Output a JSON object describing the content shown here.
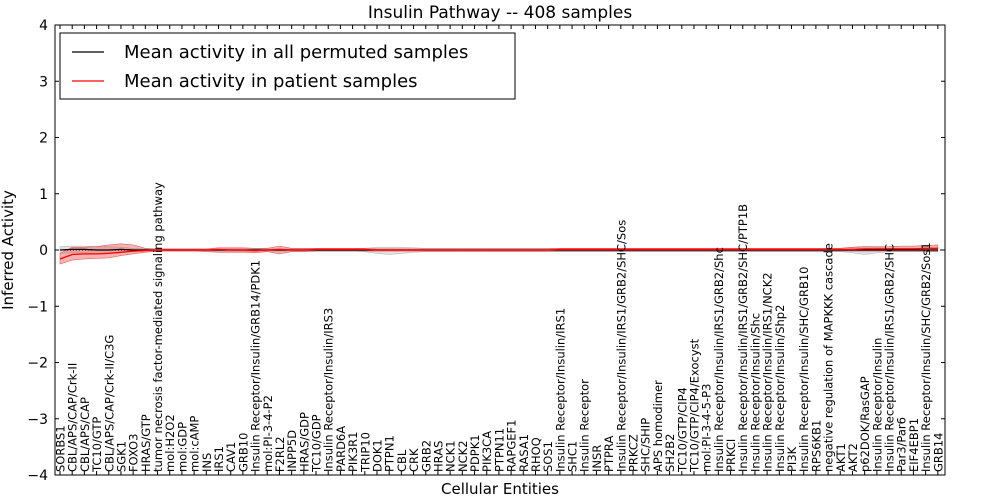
{
  "chart_data": {
    "type": "line",
    "title": "Insulin Pathway -- 408 samples",
    "xlabel": "Cellular Entities",
    "ylabel": "Inferred Activity",
    "ylim": [
      -4,
      4
    ],
    "yticks": [
      "−4",
      "−3",
      "−2",
      "−1",
      "0",
      "1",
      "2",
      "3",
      "4"
    ],
    "grid": false,
    "legend_position": "top-left",
    "categories": [
      "SORBS1",
      "CBL/APS/CAP/Crk-II",
      "CBL/APS/CAP",
      "TC10/GTP",
      "CBL/APS/CAP/Crk-II/C3G",
      "SGK1",
      "FOXO3",
      "HRAS/GTP",
      "tumor necrosis factor-mediated signaling pathway",
      "mol:H2O2",
      "mol:GDP",
      "mol:cAMP",
      "INS",
      "IRS1",
      "CAV1",
      "GRB10",
      "Insulin Receptor/Insulin/GRB14/PDK1",
      "mol:PI-3-4-P2",
      "F2RL2",
      "INPP5D",
      "HRAS/GDP",
      "TC10/GDP",
      "Insulin Receptor/Insulin/IRS3",
      "PARD6A",
      "PIK3R1",
      "TRIP10",
      "DOK1",
      "PTPN1",
      "CBL",
      "CRK",
      "GRB2",
      "HRAS",
      "NCK1",
      "NCK2",
      "PDPK1",
      "PIK3CA",
      "PTPN11",
      "RAPGEF1",
      "RASA1",
      "RHOQ",
      "SOS1",
      "Insulin Receptor/Insulin/IRS1",
      "SHC1",
      "Insulin Receptor",
      "INSR",
      "PTPRA",
      "Insulin Receptor/Insulin/IRS1/GRB2/SHC/Sos",
      "PRKCZ",
      "SHC/SHIP",
      "APS homodimer",
      "SH2B2",
      "TC10/GTP/CIP4",
      "TC10/GTP/CIP4/Exocyst",
      "mol:PI-3-4-5-P3",
      "Insulin Receptor/Insulin/IRS1/GRB2/Shc",
      "PRKCI",
      "Insulin Receptor/Insulin/IRS1/GRB2/SHC/PTP1B",
      "Insulin Receptor/Insulin/Shc",
      "Insulin Receptor/Insulin/IRS1/NCK2",
      "Insulin Receptor/Insulin/Shp2",
      "PI3K",
      "Insulin Receptor/Insulin/SHC/GRB10",
      "RPS6KB1",
      "negative regulation of MAPKKK cascade",
      "AKT1",
      "AKT2",
      "p62DOK/RasGAP",
      "Insulin Receptor/Insulin",
      "Insulin Receptor/Insulin/IRS1/GRB2/SHC",
      "Par3/Par6",
      "EIF4EBP1",
      "Insulin Receptor/Insulin/SHC/GRB2/Sos1",
      "GRB14"
    ],
    "series": [
      {
        "name": "Mean activity in all permuted samples",
        "color": "#000000",
        "values": [
          0.0,
          0.01,
          0.01,
          0.0,
          0.0,
          0.01,
          0.0,
          0.0,
          0.0,
          0.0,
          0.0,
          0.0,
          0.0,
          0.0,
          0.0,
          0.0,
          0.0,
          0.0,
          0.0,
          0.0,
          0.0,
          0.0,
          0.0,
          0.0,
          0.0,
          0.0,
          0.0,
          0.0,
          0.0,
          0.0,
          0.0,
          0.0,
          0.0,
          0.0,
          0.0,
          0.0,
          0.0,
          0.0,
          0.0,
          0.0,
          0.0,
          0.0,
          0.0,
          0.0,
          0.0,
          0.0,
          0.0,
          0.0,
          0.0,
          0.0,
          0.0,
          0.0,
          0.0,
          0.0,
          0.0,
          0.0,
          0.0,
          0.0,
          0.0,
          0.0,
          0.0,
          0.0,
          0.0,
          0.0,
          0.0,
          0.0,
          0.0,
          0.0,
          0.0,
          0.0,
          0.0,
          0.0,
          0.0
        ],
        "band_low": [
          -0.06,
          -0.05,
          -0.05,
          -0.06,
          -0.05,
          -0.04,
          -0.03,
          -0.02,
          -0.02,
          -0.02,
          -0.02,
          -0.02,
          -0.02,
          -0.02,
          -0.03,
          -0.03,
          -0.03,
          -0.02,
          -0.02,
          -0.02,
          -0.02,
          -0.02,
          -0.02,
          -0.02,
          -0.02,
          -0.03,
          -0.06,
          -0.08,
          -0.06,
          -0.04,
          -0.03,
          -0.03,
          -0.03,
          -0.03,
          -0.03,
          -0.03,
          -0.03,
          -0.03,
          -0.03,
          -0.03,
          -0.03,
          -0.03,
          -0.03,
          -0.03,
          -0.03,
          -0.03,
          -0.03,
          -0.03,
          -0.03,
          -0.03,
          -0.03,
          -0.03,
          -0.03,
          -0.03,
          -0.03,
          -0.03,
          -0.03,
          -0.03,
          -0.03,
          -0.03,
          -0.03,
          -0.03,
          -0.03,
          -0.03,
          -0.03,
          -0.05,
          -0.08,
          -0.05,
          -0.03,
          -0.03,
          -0.03,
          -0.03,
          -0.03
        ],
        "band_high": [
          0.06,
          0.07,
          0.07,
          0.06,
          0.06,
          0.05,
          0.03,
          0.02,
          0.02,
          0.02,
          0.02,
          0.02,
          0.02,
          0.02,
          0.03,
          0.03,
          0.03,
          0.02,
          0.02,
          0.02,
          0.02,
          0.02,
          0.02,
          0.02,
          0.02,
          0.03,
          0.05,
          0.05,
          0.05,
          0.04,
          0.03,
          0.03,
          0.03,
          0.03,
          0.03,
          0.03,
          0.03,
          0.03,
          0.03,
          0.03,
          0.03,
          0.03,
          0.03,
          0.03,
          0.03,
          0.03,
          0.03,
          0.03,
          0.03,
          0.03,
          0.03,
          0.03,
          0.03,
          0.03,
          0.03,
          0.03,
          0.03,
          0.03,
          0.03,
          0.03,
          0.03,
          0.03,
          0.03,
          0.03,
          0.03,
          0.05,
          0.06,
          0.05,
          0.03,
          0.03,
          0.03,
          0.03,
          0.03
        ]
      },
      {
        "name": "Mean activity in patient samples",
        "color": "#ff0000",
        "values": [
          -0.16,
          -0.08,
          -0.07,
          -0.07,
          -0.06,
          -0.04,
          -0.02,
          -0.01,
          0.0,
          0.0,
          0.0,
          0.0,
          0.0,
          0.01,
          0.0,
          0.0,
          -0.01,
          0.0,
          0.01,
          0.0,
          0.0,
          0.01,
          0.01,
          0.01,
          0.01,
          0.01,
          0.0,
          0.0,
          0.0,
          0.0,
          0.0,
          0.0,
          0.0,
          0.0,
          0.0,
          0.0,
          0.0,
          0.0,
          0.0,
          0.0,
          0.0,
          0.01,
          0.01,
          0.01,
          0.01,
          0.01,
          0.01,
          0.01,
          0.01,
          0.01,
          0.01,
          0.01,
          0.01,
          0.01,
          0.01,
          0.01,
          0.01,
          0.01,
          0.01,
          0.01,
          0.01,
          0.01,
          0.01,
          0.01,
          0.01,
          0.01,
          0.02,
          0.02,
          0.02,
          0.02,
          0.02,
          0.03,
          0.03
        ],
        "band_low": [
          -0.25,
          -0.18,
          -0.16,
          -0.15,
          -0.14,
          -0.1,
          -0.07,
          -0.04,
          -0.02,
          -0.02,
          -0.02,
          -0.02,
          -0.03,
          -0.04,
          -0.04,
          -0.04,
          -0.05,
          -0.03,
          -0.07,
          -0.03,
          -0.03,
          -0.02,
          -0.02,
          -0.02,
          -0.02,
          -0.02,
          -0.02,
          -0.02,
          -0.02,
          -0.02,
          -0.02,
          -0.02,
          -0.02,
          -0.02,
          -0.02,
          -0.02,
          -0.02,
          -0.02,
          -0.02,
          -0.02,
          -0.02,
          -0.02,
          -0.02,
          -0.02,
          -0.02,
          -0.02,
          -0.02,
          -0.02,
          -0.02,
          -0.02,
          -0.02,
          -0.02,
          -0.02,
          -0.02,
          -0.02,
          -0.02,
          -0.02,
          -0.02,
          -0.02,
          -0.02,
          -0.02,
          -0.02,
          -0.02,
          -0.02,
          -0.02,
          -0.02,
          -0.02,
          -0.02,
          -0.02,
          -0.02,
          -0.02,
          -0.02,
          -0.03
        ],
        "band_high": [
          -0.06,
          0.05,
          0.05,
          0.06,
          0.09,
          0.11,
          0.09,
          0.03,
          0.02,
          0.02,
          0.02,
          0.02,
          0.02,
          0.04,
          0.04,
          0.04,
          0.03,
          0.03,
          0.07,
          0.03,
          0.03,
          0.03,
          0.03,
          0.03,
          0.03,
          0.03,
          0.02,
          0.02,
          0.02,
          0.02,
          0.02,
          0.02,
          0.02,
          0.02,
          0.02,
          0.02,
          0.02,
          0.02,
          0.02,
          0.02,
          0.02,
          0.03,
          0.03,
          0.03,
          0.03,
          0.03,
          0.03,
          0.03,
          0.03,
          0.03,
          0.03,
          0.03,
          0.03,
          0.03,
          0.03,
          0.03,
          0.03,
          0.03,
          0.03,
          0.03,
          0.03,
          0.03,
          0.03,
          0.03,
          0.03,
          0.05,
          0.06,
          0.06,
          0.06,
          0.07,
          0.07,
          0.08,
          0.09
        ]
      }
    ]
  }
}
